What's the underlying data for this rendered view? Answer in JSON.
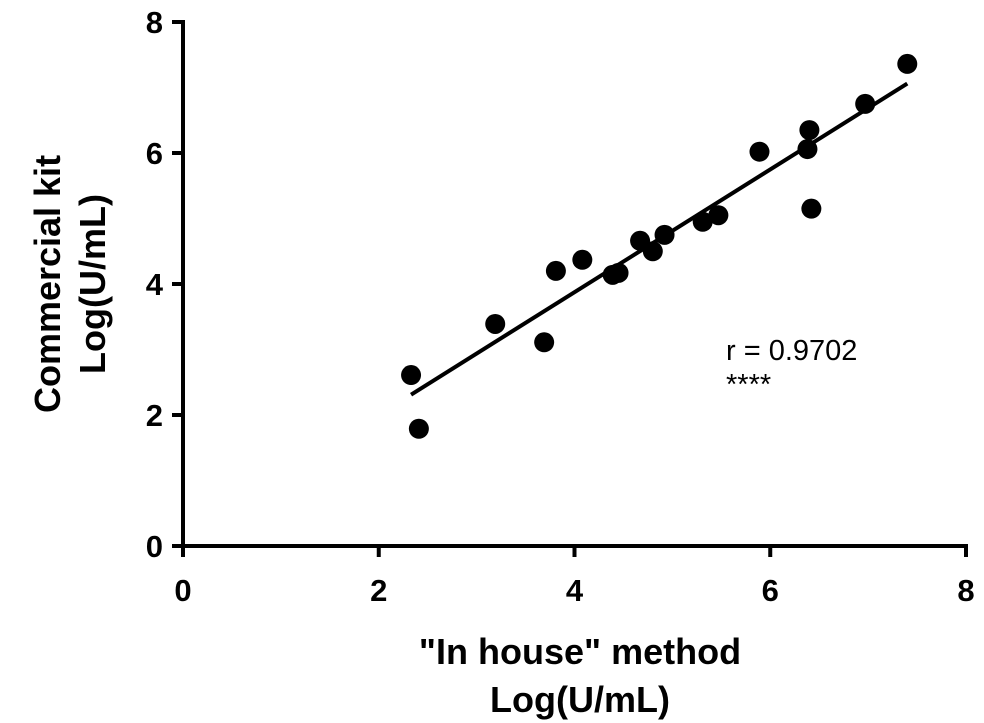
{
  "chart_data": {
    "type": "scatter",
    "x_label": [
      "\"In house\" method",
      "Log(U/mL)"
    ],
    "y_label": [
      "Commercial kit",
      "Log(U/mL)"
    ],
    "x": [
      2.33,
      2.41,
      3.19,
      3.69,
      3.81,
      4.08,
      4.39,
      4.45,
      4.67,
      4.8,
      4.92,
      5.31,
      5.47,
      5.89,
      6.38,
      6.4,
      6.42,
      6.97,
      7.4
    ],
    "values": [
      2.61,
      1.79,
      3.39,
      3.11,
      4.2,
      4.37,
      4.14,
      4.17,
      4.66,
      4.5,
      4.75,
      4.95,
      5.05,
      6.02,
      6.06,
      6.35,
      5.15,
      6.75,
      7.36
    ],
    "color": "#000000",
    "fit_line": {
      "x": [
        2.33,
        7.4
      ],
      "y": [
        2.31,
        7.06
      ]
    },
    "annotations": [
      "r = 0.9702",
      "****"
    ],
    "xlim": [
      0,
      8
    ],
    "ylim": [
      0,
      8
    ],
    "xticks": [
      0,
      2,
      4,
      6,
      8
    ],
    "yticks": [
      0,
      2,
      4,
      6,
      8
    ]
  }
}
